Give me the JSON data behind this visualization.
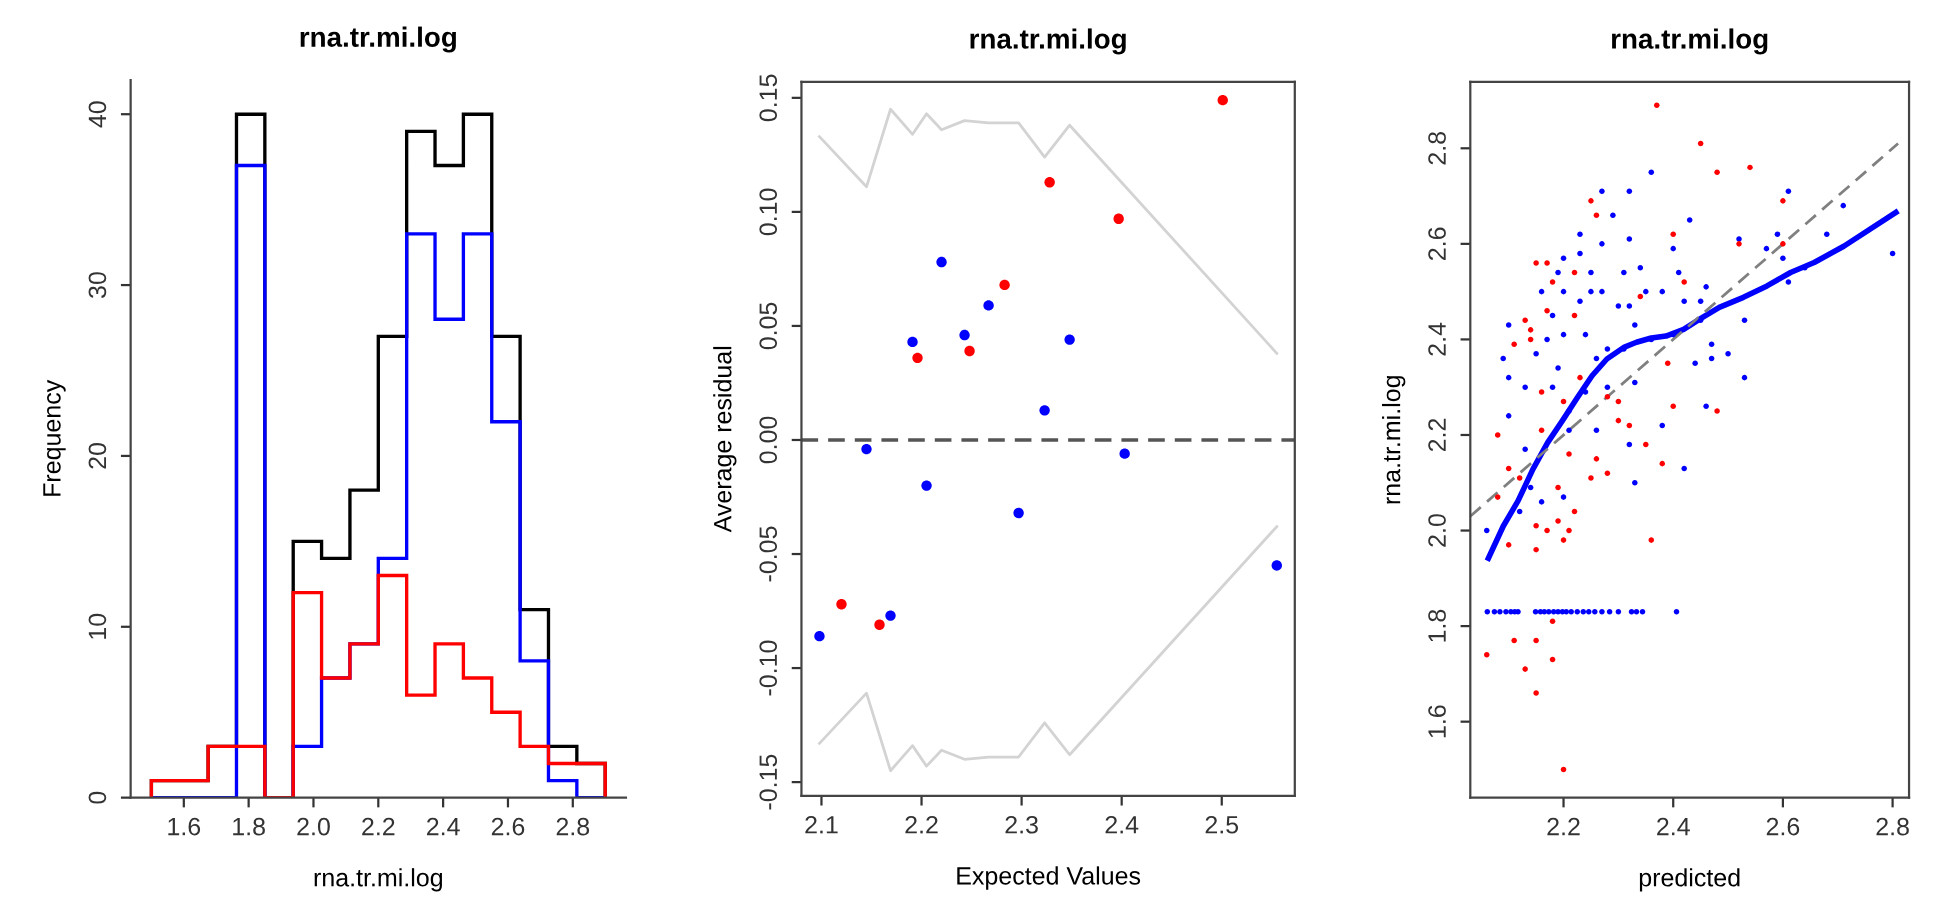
{
  "chart_data": [
    {
      "type": "histogram",
      "title": "rna.tr.mi.log",
      "xlabel": "rna.tr.mi.log",
      "ylabel": "Frequency",
      "bins": [
        1.5,
        1.5875,
        1.675,
        1.7625,
        1.85,
        1.9375,
        2.025,
        2.1125,
        2.2,
        2.2875,
        2.375,
        2.4625,
        2.55,
        2.6375,
        2.725,
        2.8125,
        2.9
      ],
      "series": [
        {
          "color": "#000000",
          "values": [
            1,
            1,
            3,
            40,
            0,
            15,
            14,
            18,
            27,
            39,
            37,
            40,
            27,
            11,
            3,
            2
          ]
        },
        {
          "color": "#0000ff",
          "values": [
            0,
            0,
            0,
            37,
            0,
            3,
            7,
            9,
            14,
            33,
            28,
            33,
            22,
            8,
            1,
            0
          ]
        },
        {
          "color": "#ff0000",
          "values": [
            1,
            1,
            3,
            3,
            0,
            12,
            7,
            9,
            13,
            6,
            9,
            7,
            5,
            3,
            2,
            2
          ]
        }
      ],
      "xlim": [
        1.436,
        2.964
      ],
      "ylim": [
        0,
        42
      ],
      "xticks": [
        1.6,
        1.8,
        {
          "value": 2.0,
          "label": "2.0"
        },
        2.2,
        2.4,
        2.6,
        2.8
      ],
      "yticks": [
        0,
        10,
        20,
        30,
        40
      ]
    },
    {
      "type": "scatter",
      "title": "rna.tr.mi.log",
      "xlabel": "Expected Values",
      "ylabel": "Average residual",
      "series": [
        {
          "color": "#d3d3d3",
          "type": "line",
          "x": [
            2.098,
            2.145,
            2.169,
            2.191,
            2.205,
            2.22,
            2.243,
            2.267,
            2.297,
            2.323,
            2.348,
            2.555
          ],
          "values": [
            0.133,
            0.111,
            0.145,
            0.134,
            0.143,
            0.136,
            0.14,
            0.139,
            0.139,
            0.124,
            0.138,
            0.038
          ]
        },
        {
          "color": "#d3d3d3",
          "type": "line",
          "x": [
            2.098,
            2.145,
            2.169,
            2.191,
            2.205,
            2.22,
            2.243,
            2.267,
            2.297,
            2.323,
            2.348,
            2.555
          ],
          "values": [
            -0.133,
            -0.111,
            -0.145,
            -0.134,
            -0.143,
            -0.136,
            -0.14,
            -0.139,
            -0.139,
            -0.124,
            -0.138,
            -0.038
          ]
        },
        {
          "color": "#0000ff",
          "marker": "circle",
          "x": [
            2.098,
            2.145,
            2.169,
            2.191,
            2.205,
            2.22,
            2.243,
            2.267,
            2.297,
            2.323,
            2.348,
            2.403,
            2.555
          ],
          "values": [
            -0.086,
            -0.004,
            -0.077,
            0.043,
            -0.02,
            0.078,
            0.046,
            0.059,
            -0.032,
            0.013,
            0.044,
            -0.006,
            -0.055
          ]
        },
        {
          "color": "#ff0000",
          "marker": "circle",
          "x": [
            2.12,
            2.158,
            2.196,
            2.248,
            2.283,
            2.328,
            2.397,
            2.501
          ],
          "values": [
            -0.072,
            -0.081,
            0.036,
            0.039,
            0.068,
            0.113,
            0.097,
            0.149
          ]
        }
      ],
      "ref_lines": [
        {
          "axis": "y",
          "value": 0,
          "color": "#555555",
          "line_style": "dashed"
        }
      ],
      "xlim": [
        2.08,
        2.573
      ],
      "ylim": [
        -0.156,
        0.157
      ],
      "xticks": [
        2.1,
        2.2,
        2.3,
        2.4,
        2.5
      ],
      "yticks": [
        {
          "value": -0.15,
          "label": "-0.15"
        },
        {
          "value": -0.1,
          "label": "-0.10"
        },
        {
          "value": -0.05,
          "label": "-0.05"
        },
        {
          "value": 0,
          "label": "0.00"
        },
        {
          "value": 0.05,
          "label": "0.05"
        },
        {
          "value": 0.1,
          "label": "0.10"
        },
        {
          "value": 0.15,
          "label": "0.15"
        }
      ]
    },
    {
      "type": "scatter",
      "title": "rna.tr.mi.log",
      "xlabel": "predicted",
      "ylabel": "rna.tr.mi.log",
      "series": [
        {
          "color": "#0000ff",
          "marker": "circle",
          "x": [
            2.061,
            2.074,
            2.084,
            2.095,
            2.104,
            2.111,
            2.117,
            2.149,
            2.158,
            2.165,
            2.173,
            2.182,
            2.19,
            2.198,
            2.205,
            2.214,
            2.225,
            2.236,
            2.246,
            2.257,
            2.27,
            2.284,
            2.3,
            2.324,
            2.333,
            2.344,
            2.406,
            2.06,
            2.09,
            2.1,
            2.1,
            2.1,
            2.12,
            2.13,
            2.13,
            2.14,
            2.15,
            2.16,
            2.16,
            2.17,
            2.18,
            2.18,
            2.19,
            2.19,
            2.2,
            2.2,
            2.2,
            2.21,
            2.2,
            2.21,
            2.23,
            2.23,
            2.23,
            2.24,
            2.24,
            2.25,
            2.25,
            2.26,
            2.26,
            2.27,
            2.27,
            2.27,
            2.28,
            2.28,
            2.29,
            2.3,
            2.31,
            2.31,
            2.32,
            2.32,
            2.32,
            2.32,
            2.33,
            2.33,
            2.33,
            2.34,
            2.35,
            2.36,
            2.36,
            2.38,
            2.38,
            2.4,
            2.4,
            2.41,
            2.42,
            2.42,
            2.43,
            2.44,
            2.45,
            2.45,
            2.46,
            2.46,
            2.47,
            2.47,
            2.5,
            2.52,
            2.53,
            2.53,
            2.57,
            2.59,
            2.6,
            2.61,
            2.61,
            2.64,
            2.68,
            2.71,
            2.8
          ],
          "values": [
            1.83,
            1.83,
            1.83,
            1.83,
            1.83,
            1.83,
            1.83,
            1.83,
            1.83,
            1.83,
            1.83,
            1.83,
            1.83,
            1.83,
            1.83,
            1.83,
            1.83,
            1.83,
            1.83,
            1.83,
            1.83,
            1.83,
            1.83,
            1.83,
            1.83,
            1.83,
            1.83,
            2.0,
            2.36,
            2.43,
            2.32,
            2.24,
            2.04,
            2.17,
            2.3,
            2.09,
            2.37,
            2.5,
            2.06,
            2.4,
            2.3,
            2.45,
            2.54,
            2.34,
            2.07,
            2.5,
            2.41,
            2.25,
            2.57,
            2.21,
            2.58,
            2.62,
            2.48,
            2.41,
            2.29,
            2.54,
            2.5,
            2.36,
            2.21,
            2.6,
            2.5,
            2.71,
            2.38,
            2.3,
            2.66,
            2.47,
            2.38,
            2.54,
            2.47,
            2.71,
            2.61,
            2.18,
            2.1,
            2.31,
            2.43,
            2.55,
            2.5,
            2.75,
            2.4,
            2.5,
            2.22,
            2.59,
            2.41,
            2.54,
            2.13,
            2.48,
            2.65,
            2.35,
            2.48,
            2.44,
            2.26,
            2.51,
            2.36,
            2.39,
            2.37,
            2.61,
            2.32,
            2.44,
            2.59,
            2.62,
            2.57,
            2.71,
            2.52,
            2.55,
            2.62,
            2.68,
            2.58
          ]
        },
        {
          "color": "#ff0000",
          "marker": "circle",
          "x": [
            2.06,
            2.08,
            2.08,
            2.1,
            2.1,
            2.11,
            2.11,
            2.12,
            2.13,
            2.13,
            2.14,
            2.14,
            2.15,
            2.15,
            2.15,
            2.15,
            2.15,
            2.16,
            2.16,
            2.17,
            2.17,
            2.17,
            2.18,
            2.18,
            2.18,
            2.19,
            2.19,
            2.2,
            2.2,
            2.2,
            2.21,
            2.21,
            2.22,
            2.22,
            2.22,
            2.23,
            2.25,
            2.25,
            2.26,
            2.26,
            2.28,
            2.28,
            2.3,
            2.3,
            2.32,
            2.34,
            2.35,
            2.36,
            2.37,
            2.38,
            2.39,
            2.4,
            2.4,
            2.42,
            2.45,
            2.48,
            2.48,
            2.52,
            2.54,
            2.6,
            2.6
          ],
          "values": [
            1.74,
            2.2,
            2.07,
            2.13,
            1.97,
            1.77,
            2.39,
            2.11,
            1.71,
            2.44,
            2.42,
            2.4,
            1.66,
            2.56,
            1.77,
            2.01,
            1.96,
            2.29,
            2.21,
            2.56,
            2.0,
            2.46,
            1.81,
            1.73,
            2.52,
            2.09,
            2.02,
            2.27,
            1.98,
            1.5,
            2.16,
            2.0,
            2.45,
            2.54,
            2.04,
            2.32,
            2.11,
            2.69,
            2.15,
            2.66,
            2.12,
            2.28,
            2.23,
            2.27,
            2.22,
            2.49,
            2.18,
            1.98,
            2.89,
            2.14,
            2.35,
            2.62,
            2.26,
            2.52,
            2.81,
            2.25,
            2.75,
            2.6,
            2.76,
            2.69,
            2.6
          ]
        },
        {
          "color": "#0000ff",
          "type": "line",
          "x": [
            2.063,
            2.09,
            2.117,
            2.144,
            2.171,
            2.198,
            2.225,
            2.252,
            2.279,
            2.311,
            2.333,
            2.36,
            2.387,
            2.419,
            2.452,
            2.484,
            2.528,
            2.571,
            2.614,
            2.657,
            2.711,
            2.806
          ],
          "values": [
            1.942,
            2.009,
            2.062,
            2.128,
            2.184,
            2.23,
            2.278,
            2.324,
            2.359,
            2.384,
            2.394,
            2.403,
            2.407,
            2.421,
            2.445,
            2.467,
            2.488,
            2.512,
            2.54,
            2.561,
            2.595,
            2.666
          ]
        },
        {
          "color": "#808080",
          "type": "line",
          "line_style": "dashed",
          "x": [
            2.03,
            2.81
          ],
          "values": [
            2.03,
            2.81
          ]
        }
      ],
      "xlim": [
        2.03,
        2.83
      ],
      "ylim": [
        1.441,
        2.939
      ],
      "xticks": [
        2.2,
        2.4,
        2.6,
        2.8
      ],
      "yticks": [
        1.6,
        1.8,
        {
          "value": 2.0,
          "label": "2.0"
        },
        2.2,
        2.4,
        2.6,
        2.8
      ]
    }
  ]
}
